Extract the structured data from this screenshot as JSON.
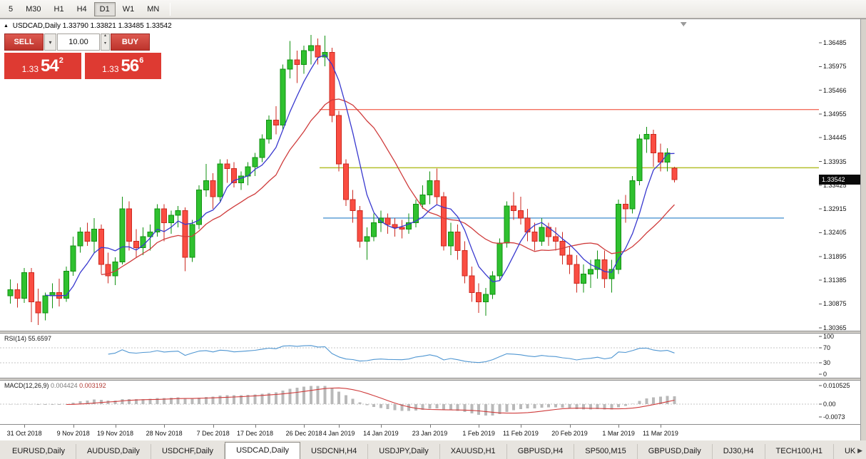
{
  "toolbar": {
    "timeframes": [
      {
        "label": "5",
        "active": false
      },
      {
        "label": "M30",
        "active": false
      },
      {
        "label": "H1",
        "active": false
      },
      {
        "label": "H4",
        "active": false
      },
      {
        "label": "D1",
        "active": true
      },
      {
        "label": "W1",
        "active": false
      },
      {
        "label": "MN",
        "active": false
      }
    ]
  },
  "chart": {
    "collapse_icon": "▲",
    "title": "USDCAD,Daily",
    "ohlc": "1.33790 1.33821 1.33485 1.33542"
  },
  "trade_panel": {
    "sell_label": "SELL",
    "buy_label": "BUY",
    "volume": "10.00",
    "chevron_down_icon": "▾",
    "spin_up_icon": "▴",
    "spin_down_icon": "▾",
    "bid_fig": "1.33",
    "bid_pips": "54",
    "bid_sup": "2",
    "ask_fig": "1.33",
    "ask_pips": "56",
    "ask_sup": "6"
  },
  "price_axis": {
    "labels": [
      "1.36485",
      "1.35975",
      "1.35466",
      "1.34955",
      "1.34445",
      "1.33935",
      "1.33425",
      "1.32915",
      "1.32405",
      "1.31895",
      "1.31385",
      "1.30875",
      "1.30365"
    ],
    "current": "1.33542"
  },
  "rsi": {
    "label": "RSI(14)",
    "value": "55.6597",
    "axis_labels": [
      "100",
      "70",
      "30",
      "0"
    ],
    "levels": [
      70,
      30
    ]
  },
  "macd": {
    "label": "MACD(12,26,9)",
    "value_main": "0.004424",
    "value_signal": "0.003192",
    "axis_labels": [
      {
        "text": "0.010525",
        "value": 0.010525
      },
      {
        "text": "0.00",
        "value": 0
      },
      {
        "text": "-0.0073",
        "value": -0.0073
      }
    ]
  },
  "date_axis": [
    {
      "label": "31 Oct 2018",
      "i": 2
    },
    {
      "label": "9 Nov 2018",
      "i": 9
    },
    {
      "label": "19 Nov 2018",
      "i": 15
    },
    {
      "label": "28 Nov 2018",
      "i": 22
    },
    {
      "label": "7 Dec 2018",
      "i": 29
    },
    {
      "label": "17 Dec 2018",
      "i": 35
    },
    {
      "label": "26 Dec 2018",
      "i": 42
    },
    {
      "label": "4 Jan 2019",
      "i": 47
    },
    {
      "label": "14 Jan 2019",
      "i": 53
    },
    {
      "label": "23 Jan 2019",
      "i": 60
    },
    {
      "label": "1 Feb 2019",
      "i": 67
    },
    {
      "label": "11 Feb 2019",
      "i": 73
    },
    {
      "label": "20 Feb 2019",
      "i": 80
    },
    {
      "label": "1 Mar 2019",
      "i": 87
    },
    {
      "label": "11 Mar 2019",
      "i": 93
    }
  ],
  "tabs": {
    "active": "USDCAD,Daily",
    "scroll_right_icon": "▶",
    "items": [
      "EURUSD,Daily",
      "AUDUSD,Daily",
      "USDCHF,Daily",
      "USDCAD,Daily",
      "USDCNH,H4",
      "USDJPY,Daily",
      "XAUUSD,H1",
      "GBPUSD,H4",
      "SP500,M15",
      "GBPUSD,Daily",
      "DJ30,H4",
      "TECH100,H1",
      "UKC"
    ]
  },
  "colors": {
    "candle_up": "#2fc12f",
    "candle_up_stroke": "#119111",
    "candle_down": "#fa4d42",
    "candle_down_stroke": "#cc2a20",
    "ma_fast": "#3939cf",
    "ma_slow": "#cf3b3b",
    "hline_red": "#f4705f",
    "hline_olive": "#b5bf2c",
    "hline_blue": "#4f96d2",
    "rsi_line": "#4f96d2",
    "macd_hist": "#b9b9b9",
    "macd_signal": "#cf3b3b",
    "badge_bg": "#0a0a0a"
  },
  "chart_data": {
    "type": "candlestick",
    "symbol": "USDCAD",
    "timeframe": "Daily",
    "ohlc_current": {
      "open": 1.3379,
      "high": 1.33821,
      "low": 1.33485,
      "close": 1.33542
    },
    "price_range": [
      1.303,
      1.3699
    ],
    "indicators": {
      "ma_fast_period": 6,
      "ma_slow_period": 14,
      "rsi_period": 14,
      "rsi_current": 55.6597,
      "macd_params": [
        12,
        26,
        9
      ],
      "macd_current": 0.004424,
      "macd_signal_current": 0.003192
    },
    "hlines": [
      {
        "name": "resistance-hline-red",
        "price": 1.3505,
        "color": "#f4705f",
        "from": 0.39,
        "to": 1.0
      },
      {
        "name": "pivot-hline-olive",
        "price": 1.338,
        "color": "#b5bf2c",
        "from": 0.39,
        "to": 1.0
      },
      {
        "name": "support-hline-blue",
        "price": 1.3272,
        "color": "#4f96d2",
        "from": 0.395,
        "to": 0.957
      }
    ],
    "candles": [
      [
        1.3105,
        1.314,
        1.3088,
        1.3118
      ],
      [
        1.3118,
        1.3132,
        1.308,
        1.31
      ],
      [
        1.31,
        1.3165,
        1.309,
        1.3155
      ],
      [
        1.3155,
        1.3165,
        1.3048,
        1.3092
      ],
      [
        1.3092,
        1.312,
        1.3042,
        1.3068
      ],
      [
        1.3068,
        1.3112,
        1.3052,
        1.3105
      ],
      [
        1.3105,
        1.3132,
        1.3078,
        1.3112
      ],
      [
        1.3112,
        1.3142,
        1.3082,
        1.31
      ],
      [
        1.31,
        1.3168,
        1.3092,
        1.3158
      ],
      [
        1.3158,
        1.3232,
        1.3148,
        1.3212
      ],
      [
        1.3212,
        1.3252,
        1.3198,
        1.3242
      ],
      [
        1.3242,
        1.3262,
        1.3212,
        1.3222
      ],
      [
        1.3222,
        1.3272,
        1.3198,
        1.3248
      ],
      [
        1.3248,
        1.3258,
        1.3152,
        1.3172
      ],
      [
        1.3172,
        1.3198,
        1.3132,
        1.3148
      ],
      [
        1.3148,
        1.3188,
        1.3128,
        1.3178
      ],
      [
        1.3178,
        1.3318,
        1.3172,
        1.3292
      ],
      [
        1.3292,
        1.3308,
        1.3202,
        1.3222
      ],
      [
        1.3222,
        1.3248,
        1.3188,
        1.3208
      ],
      [
        1.3208,
        1.3252,
        1.3192,
        1.3232
      ],
      [
        1.3232,
        1.3258,
        1.3202,
        1.3242
      ],
      [
        1.3242,
        1.3302,
        1.3232,
        1.3292
      ],
      [
        1.3292,
        1.3302,
        1.3222,
        1.3262
      ],
      [
        1.3262,
        1.3288,
        1.3238,
        1.3278
      ],
      [
        1.3278,
        1.3298,
        1.3252,
        1.3288
      ],
      [
        1.3288,
        1.3295,
        1.3158,
        1.3188
      ],
      [
        1.3188,
        1.3268,
        1.3178,
        1.3258
      ],
      [
        1.3258,
        1.3342,
        1.3248,
        1.3332
      ],
      [
        1.3332,
        1.3388,
        1.3318,
        1.3352
      ],
      [
        1.3352,
        1.3368,
        1.3292,
        1.3318
      ],
      [
        1.3318,
        1.3398,
        1.3308,
        1.3388
      ],
      [
        1.3388,
        1.3398,
        1.3348,
        1.3378
      ],
      [
        1.3378,
        1.3392,
        1.3338,
        1.3348
      ],
      [
        1.3348,
        1.3372,
        1.3332,
        1.3362
      ],
      [
        1.3362,
        1.3392,
        1.3342,
        1.3382
      ],
      [
        1.3382,
        1.3412,
        1.3362,
        1.3402
      ],
      [
        1.3402,
        1.3452,
        1.3392,
        1.3442
      ],
      [
        1.3442,
        1.3492,
        1.3432,
        1.3482
      ],
      [
        1.3482,
        1.3512,
        1.3452,
        1.3472
      ],
      [
        1.3472,
        1.3602,
        1.3462,
        1.3592
      ],
      [
        1.3592,
        1.3652,
        1.3572,
        1.3612
      ],
      [
        1.3612,
        1.3632,
        1.3562,
        1.3602
      ],
      [
        1.3602,
        1.3642,
        1.3582,
        1.3632
      ],
      [
        1.3632,
        1.3665,
        1.3602,
        1.3642
      ],
      [
        1.3642,
        1.3658,
        1.3602,
        1.3618
      ],
      [
        1.3618,
        1.3664,
        1.3598,
        1.3628
      ],
      [
        1.3628,
        1.3638,
        1.3478,
        1.3492
      ],
      [
        1.3492,
        1.3502,
        1.3372,
        1.3388
      ],
      [
        1.3388,
        1.3398,
        1.3298,
        1.3312
      ],
      [
        1.3312,
        1.3332,
        1.3262,
        1.3288
      ],
      [
        1.3288,
        1.3298,
        1.3208,
        1.3222
      ],
      [
        1.3222,
        1.3252,
        1.3182,
        1.3232
      ],
      [
        1.3232,
        1.3282,
        1.3222,
        1.3262
      ],
      [
        1.3262,
        1.3288,
        1.3242,
        1.3272
      ],
      [
        1.3272,
        1.3282,
        1.3238,
        1.3258
      ],
      [
        1.3258,
        1.3272,
        1.3232,
        1.3252
      ],
      [
        1.3252,
        1.3268,
        1.3228,
        1.3248
      ],
      [
        1.3248,
        1.3282,
        1.3238,
        1.3262
      ],
      [
        1.3262,
        1.3312,
        1.3252,
        1.3302
      ],
      [
        1.3302,
        1.3342,
        1.3292,
        1.3322
      ],
      [
        1.3322,
        1.3372,
        1.3302,
        1.3352
      ],
      [
        1.3352,
        1.3378,
        1.3302,
        1.3318
      ],
      [
        1.3318,
        1.3328,
        1.3202,
        1.3212
      ],
      [
        1.3212,
        1.3262,
        1.3192,
        1.3242
      ],
      [
        1.3242,
        1.3258,
        1.3182,
        1.3202
      ],
      [
        1.3202,
        1.3222,
        1.3132,
        1.3148
      ],
      [
        1.3148,
        1.3168,
        1.3092,
        1.3112
      ],
      [
        1.3112,
        1.3132,
        1.3068,
        1.3092
      ],
      [
        1.3092,
        1.3122,
        1.3062,
        1.3108
      ],
      [
        1.3108,
        1.3158,
        1.3098,
        1.3148
      ],
      [
        1.3148,
        1.3228,
        1.3138,
        1.3218
      ],
      [
        1.3218,
        1.3308,
        1.3208,
        1.3298
      ],
      [
        1.3298,
        1.3328,
        1.3268,
        1.3288
      ],
      [
        1.3288,
        1.3318,
        1.3258,
        1.3272
      ],
      [
        1.3272,
        1.3292,
        1.3222,
        1.3242
      ],
      [
        1.3242,
        1.3262,
        1.3202,
        1.3222
      ],
      [
        1.3222,
        1.3272,
        1.3212,
        1.3252
      ],
      [
        1.3252,
        1.3262,
        1.3212,
        1.3232
      ],
      [
        1.3232,
        1.3252,
        1.3202,
        1.3222
      ],
      [
        1.3222,
        1.3242,
        1.3172,
        1.3192
      ],
      [
        1.3192,
        1.3212,
        1.3152,
        1.3172
      ],
      [
        1.3172,
        1.3192,
        1.3112,
        1.3132
      ],
      [
        1.3132,
        1.3172,
        1.3112,
        1.3152
      ],
      [
        1.3152,
        1.3182,
        1.3122,
        1.3162
      ],
      [
        1.3162,
        1.3202,
        1.3142,
        1.3182
      ],
      [
        1.3182,
        1.3202,
        1.3122,
        1.3142
      ],
      [
        1.3142,
        1.3182,
        1.3112,
        1.3162
      ],
      [
        1.3162,
        1.3312,
        1.3152,
        1.3302
      ],
      [
        1.3302,
        1.3322,
        1.3262,
        1.3292
      ],
      [
        1.3292,
        1.3362,
        1.3282,
        1.3352
      ],
      [
        1.3352,
        1.3452,
        1.3342,
        1.3442
      ],
      [
        1.3442,
        1.3468,
        1.3412,
        1.3452
      ],
      [
        1.3452,
        1.3462,
        1.3382,
        1.3412
      ],
      [
        1.3412,
        1.3432,
        1.3372,
        1.3392
      ],
      [
        1.3392,
        1.3422,
        1.3372,
        1.3412
      ],
      [
        1.3379,
        1.33821,
        1.33485,
        1.33542
      ]
    ]
  }
}
